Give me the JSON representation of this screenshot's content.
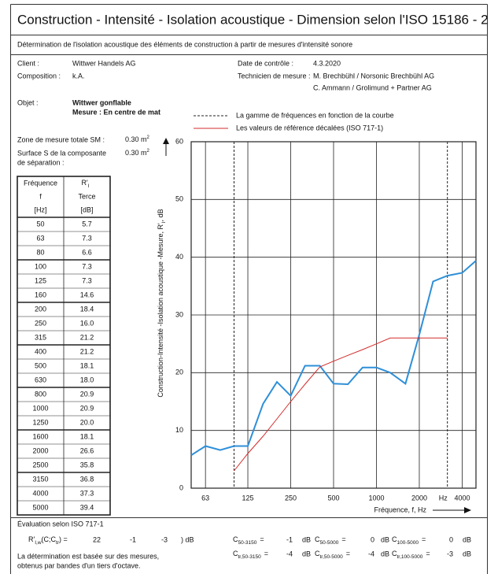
{
  "header": {
    "title": "Construction - Intensité - Isolation acoustique - Dimension selon l'ISO 15186 - 2",
    "subtitle": "Détermination de l'isolation acoustique des éléments de construction à partir de mesures d'intensité sonore"
  },
  "info": {
    "client_label": "Client :",
    "client": "Wittwer Handels AG",
    "composition_label": "Composition :",
    "composition": "k.A.",
    "date_label": "Date de contrôle :",
    "date": "4.3.2020",
    "technician_label": "Technicien de mesure :",
    "technician": [
      "M. Brechbühl / Norsonic Brechbühl AG",
      "C. Ammann / Grolimund + Partner AG"
    ],
    "object_label": "Objet :",
    "object": "Wittwer gonflable",
    "measure": "Mesure : En centre de mat"
  },
  "area": {
    "zone_label": "Zone de mesure totale SM :",
    "zone": "0.30 m",
    "surface_label": [
      "Surface S de la composante",
      "de séparation :"
    ],
    "surface": "0.30 m",
    "unit_sup": "2"
  },
  "table": {
    "headers": [
      [
        "Fréquence",
        "f",
        "[Hz]"
      ],
      [
        "R'",
        "Terce",
        "[dB]"
      ]
    ],
    "header_sub": "I",
    "rows": [
      [
        "50",
        "5.7"
      ],
      [
        "63",
        "7.3"
      ],
      [
        "80",
        "6.6"
      ],
      [
        "100",
        "7.3"
      ],
      [
        "125",
        "7.3"
      ],
      [
        "160",
        "14.6"
      ],
      [
        "200",
        "18.4"
      ],
      [
        "250",
        "16.0"
      ],
      [
        "315",
        "21.2"
      ],
      [
        "400",
        "21.2"
      ],
      [
        "500",
        "18.1"
      ],
      [
        "630",
        "18.0"
      ],
      [
        "800",
        "20.9"
      ],
      [
        "1000",
        "20.9"
      ],
      [
        "1250",
        "20.0"
      ],
      [
        "1600",
        "18.1"
      ],
      [
        "2000",
        "26.6"
      ],
      [
        "2500",
        "35.8"
      ],
      [
        "3150",
        "36.8"
      ],
      [
        "4000",
        "37.3"
      ],
      [
        "5000",
        "39.4"
      ]
    ]
  },
  "chart_data": {
    "type": "line",
    "y_label": [
      "Construction-Intensité -Isolation acoustique -Mesure, R'",
      "I",
      ", dB"
    ],
    "x_label": "Fréquence, f, Hz",
    "x_unit": "Hz",
    "xscale": "log",
    "xlim": [
      50,
      5000
    ],
    "xticks": [
      63,
      125,
      250,
      500,
      1000,
      2000,
      4000
    ],
    "ylim": [
      0,
      60
    ],
    "yticks": [
      0,
      10,
      20,
      30,
      40,
      50,
      60
    ],
    "grid": true,
    "range": {
      "name": "La gamme de fréquences en fonction de la courbe",
      "values": [
        100,
        3150
      ]
    },
    "series": [
      {
        "color": "#2e8fd8",
        "x": [
          50,
          63,
          80,
          100,
          125,
          160,
          200,
          250,
          315,
          400,
          500,
          630,
          800,
          1000,
          1250,
          1600,
          2000,
          2500,
          3150,
          4000,
          5000
        ],
        "values": [
          5.7,
          7.3,
          6.6,
          7.3,
          7.3,
          14.6,
          18.4,
          16.0,
          21.2,
          21.2,
          18.1,
          18.0,
          20.9,
          20.9,
          20.0,
          18.1,
          26.6,
          35.8,
          36.8,
          37.3,
          39.4
        ]
      },
      {
        "name": "Les valeurs de référence décalées (ISO 717-1)",
        "color": "#d42b2b",
        "x": [
          100,
          125,
          160,
          200,
          250,
          315,
          400,
          500,
          630,
          800,
          1000,
          1250,
          1600,
          2000,
          2500,
          3150
        ],
        "values": [
          3,
          6,
          9,
          12,
          15,
          18,
          21,
          22,
          23,
          24,
          25,
          26,
          26,
          26,
          26,
          26
        ]
      }
    ]
  },
  "evaluation": {
    "title": "Évaluation selon ISO 717-1",
    "rw": {
      "symbol": "R'",
      "sub": "I,w",
      "paren": "(C;C",
      "paren_sub": "tr",
      "eq": ") =",
      "values": [
        22,
        -1,
        -3
      ],
      "unit": ") dB"
    },
    "eq": "=",
    "unit": "dB",
    "indices": [
      [
        {
          "symbol": "C",
          "sub": "50-3150",
          "value": -1
        },
        {
          "symbol": "C",
          "sub": "50-5000",
          "value": 0
        },
        {
          "symbol": "C",
          "sub": "100-5000",
          "value": 0
        }
      ],
      [
        {
          "symbol": "C",
          "sub": "tr,50-3150",
          "value": -4
        },
        {
          "symbol": "C",
          "sub": "tr,50-5000",
          "value": -4
        },
        {
          "symbol": "C",
          "sub": "tr,100-5000",
          "value": -3
        }
      ]
    ]
  },
  "footnote": [
    "La détermination est basée sur des mesures,",
    "obtenus par bandes d'un tiers d'octave."
  ]
}
